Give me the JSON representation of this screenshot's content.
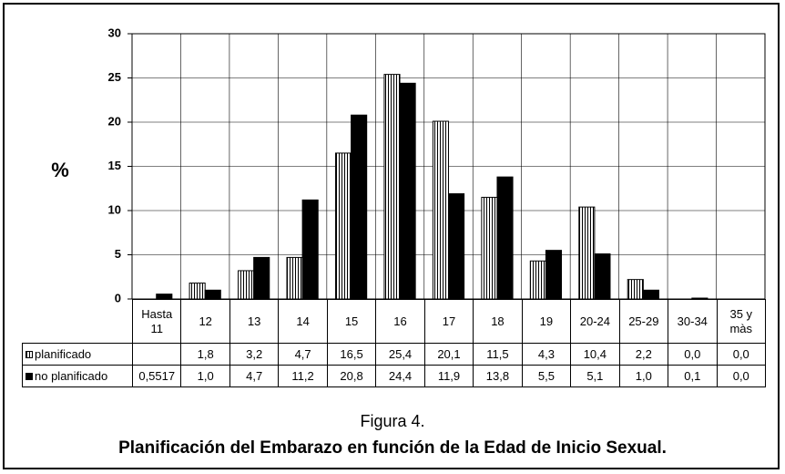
{
  "chart_data": {
    "type": "bar",
    "title": "Figura 4.",
    "subtitle": "Planificación del Embarazo en función de la Edad de Inicio Sexual.",
    "y_label": "%",
    "categories": [
      "Hasta 11",
      "12",
      "13",
      "14",
      "15",
      "16",
      "17",
      "18",
      "19",
      "20-24",
      "25-29",
      "30-34",
      "35 y màs"
    ],
    "series": [
      {
        "name": "planificado",
        "color": "#000000",
        "hatch": true,
        "values": [
          null,
          1.8,
          3.2,
          4.7,
          16.5,
          25.4,
          20.1,
          11.5,
          4.3,
          10.4,
          2.2,
          0.0,
          0.0
        ],
        "value_labels": [
          null,
          "1,8",
          "3,2",
          "4,7",
          "16,5",
          "25,4",
          "20,1",
          "11,5",
          "4,3",
          "10,4",
          "2,2",
          "0,0",
          "0,0"
        ]
      },
      {
        "name": "no planificado",
        "color": "#000000",
        "hatch": false,
        "values": [
          0.5517,
          1.0,
          4.7,
          11.2,
          20.8,
          24.4,
          11.9,
          13.8,
          5.5,
          5.1,
          1.0,
          0.1,
          0.0
        ],
        "value_labels": [
          "0,5517",
          "1,0",
          "4,7",
          "11,2",
          "20,8",
          "24,4",
          "11,9",
          "13,8",
          "5,5",
          "5,1",
          "1,0",
          "0,1",
          "0,0"
        ]
      }
    ],
    "ylim": [
      0,
      30
    ],
    "yticks": [
      0,
      5,
      10,
      15,
      20,
      25,
      30
    ],
    "grid": true
  }
}
